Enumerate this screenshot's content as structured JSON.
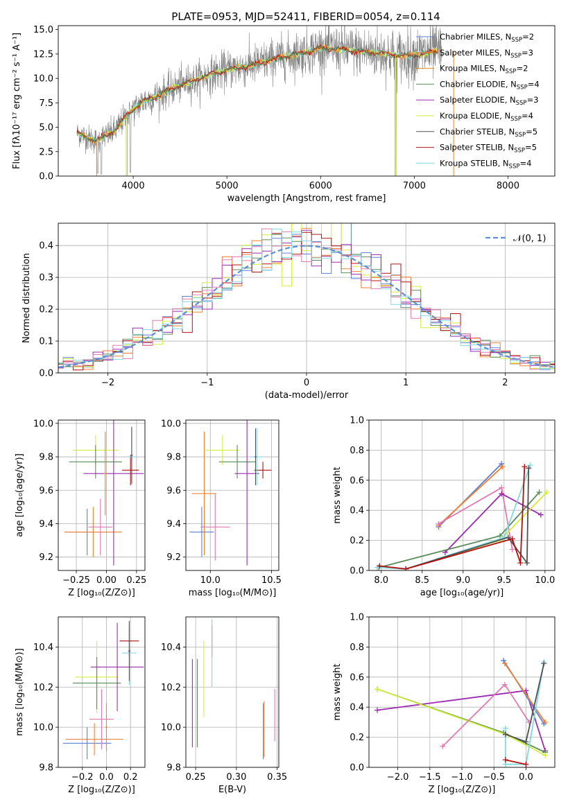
{
  "figure": {
    "title": "PLATE=0953, MJD=52411, FIBERID=0054, z=0.114"
  },
  "colors": {
    "Chabrier MILES": "#5b7fd6",
    "Salpeter MILES": "#f08030",
    "Kroupa MILES": "#e08a10",
    "Chabrier ELODIE": "#5a8a5a",
    "Salpeter ELODIE": "#9b2ab0",
    "Kroupa ELODIE": "#d4ee3a",
    "Chabrier STELIB": "#505050",
    "Salpeter STELIB": "#b01010",
    "Kroupa STELIB": "#80d8e0",
    "pink": "#e07ab0",
    "data_grey": "#808080",
    "gaussian": "#5b8fd6"
  },
  "chart_data": [
    {
      "id": "spectrum",
      "type": "line",
      "xlabel": "wavelength [Angstrom, rest frame]",
      "ylabel": "Flux [fλ10⁻¹⁷ erg cm⁻² s⁻¹ A⁻¹]",
      "xlim": [
        3200,
        8500
      ],
      "ylim": [
        0,
        15.4
      ],
      "xticks": [
        4000,
        5000,
        6000,
        7000,
        8000
      ],
      "yticks": [
        0.0,
        2.5,
        5.0,
        7.5,
        10.0,
        12.5,
        15.0
      ],
      "ytick_labels": [
        "0.0",
        "2.5",
        "5.0",
        "7.5",
        "10.0",
        "12.5",
        "15.0"
      ],
      "legend_position": "upper right",
      "legend": [
        {
          "text": "Chabrier MILES, N",
          "sub": "SSP",
          "tail": "=2",
          "color": "Chabrier MILES"
        },
        {
          "text": "Salpeter MILES, N",
          "sub": "SSP",
          "tail": "=3",
          "color": "Salpeter MILES"
        },
        {
          "text": "Kroupa MILES, N",
          "sub": "SSP",
          "tail": "=2",
          "color": "Kroupa MILES"
        },
        {
          "text": "Chabrier ELODIE, N",
          "sub": "SSP",
          "tail": "=4",
          "color": "Chabrier ELODIE"
        },
        {
          "text": "Salpeter ELODIE, N",
          "sub": "SSP",
          "tail": "=3",
          "color": "Salpeter ELODIE"
        },
        {
          "text": "Kroupa ELODIE, N",
          "sub": "SSP",
          "tail": "=4",
          "color": "Kroupa ELODIE"
        },
        {
          "text": "Chabrier STELIB, N",
          "sub": "SSP",
          "tail": "=5",
          "color": "Chabrier STELIB"
        },
        {
          "text": "Salpeter STELIB, N",
          "sub": "SSP",
          "tail": "=5",
          "color": "Salpeter STELIB"
        },
        {
          "text": "Kroupa STELIB, N",
          "sub": "SSP",
          "tail": "=4",
          "color": "Kroupa STELIB"
        }
      ],
      "continuum": [
        [
          3400,
          4.4
        ],
        [
          3600,
          3.6
        ],
        [
          3800,
          4.6
        ],
        [
          3950,
          6.4
        ],
        [
          4100,
          7.6
        ],
        [
          4300,
          8.4
        ],
        [
          4500,
          9.3
        ],
        [
          4800,
          10.3
        ],
        [
          5000,
          10.9
        ],
        [
          5300,
          11.4
        ],
        [
          5500,
          12.0
        ],
        [
          5800,
          12.6
        ],
        [
          6000,
          13.1
        ],
        [
          6300,
          12.9
        ],
        [
          6600,
          12.6
        ],
        [
          6900,
          12.3
        ],
        [
          7100,
          12.5
        ],
        [
          7200,
          12.7
        ]
      ],
      "data_range": [
        3400,
        7300
      ],
      "data_noise": 1.2,
      "dips": [
        [
          3620,
          0.3
        ],
        [
          3660,
          0.2
        ],
        [
          3930,
          0.1
        ],
        [
          3970,
          0.4
        ],
        [
          6800,
          0.0
        ],
        [
          7420,
          0.0
        ]
      ]
    },
    {
      "id": "residuals",
      "type": "histogram",
      "xlabel": "(data-model)/error",
      "ylabel": "Normed distribution",
      "xlim": [
        -2.5,
        2.5
      ],
      "ylim": [
        0,
        0.47
      ],
      "xticks": [
        -2,
        -1,
        0,
        1,
        2
      ],
      "xtick_labels": [
        "−2",
        "−1",
        "0",
        "1",
        "2"
      ],
      "yticks": [
        0.0,
        0.1,
        0.2,
        0.3,
        0.4
      ],
      "ytick_labels": [
        "0.0",
        "0.1",
        "0.2",
        "0.3",
        "0.4"
      ],
      "legend": "𝒩(0, 1)",
      "bin_width": 0.1,
      "series_colors": [
        "Chabrier MILES",
        "Salpeter MILES",
        "Kroupa ELODIE",
        "Chabrier ELODIE",
        "Salpeter ELODIE",
        "Salpeter STELIB",
        "pink",
        "Kroupa STELIB"
      ]
    },
    {
      "id": "age-vs-Z",
      "type": "errorbar",
      "xlabel": "Z [log₁₀(Z/Z⊙)]",
      "ylabel": "age  [log₁₀(age/yr)]",
      "xlim": [
        -0.4,
        0.32
      ],
      "ylim": [
        9.12,
        10.02
      ],
      "xticks": [
        -0.25,
        0.0,
        0.25
      ],
      "xtick_labels": [
        "−0.25",
        "0.00",
        "0.25"
      ],
      "yticks": [
        9.2,
        9.4,
        9.6,
        9.8,
        10.0
      ],
      "ytick_labels": [
        "9.2",
        "9.4",
        "9.6",
        "9.8",
        "10.0"
      ],
      "points": [
        {
          "c": "Chabrier MILES",
          "x": -0.16,
          "xe": 0.18,
          "y": 9.35,
          "ye": 0.14
        },
        {
          "c": "Salpeter MILES",
          "x": -0.11,
          "xe": 0.24,
          "y": 9.35,
          "ye": 0.15
        },
        {
          "c": "Kroupa ELODIE",
          "x": -0.09,
          "xe": 0.19,
          "y": 9.84,
          "ye": 0.09
        },
        {
          "c": "Chabrier ELODIE",
          "x": -0.09,
          "xe": 0.22,
          "y": 9.77,
          "ye": 0.1
        },
        {
          "c": "Salpeter ELODIE",
          "x": 0.06,
          "xe": 0.25,
          "y": 9.7,
          "ye": 0.55
        },
        {
          "c": "Salpeter STELIB",
          "x": 0.2,
          "xe": 0.07,
          "y": 9.72,
          "ye": 0.09
        },
        {
          "c": "pink",
          "x": -0.05,
          "xe": 0.1,
          "y": 9.38,
          "ye": 0.17
        },
        {
          "c": "Kroupa STELIB",
          "x": 0.21,
          "xe": 0.04,
          "y": 9.8,
          "ye": 0.17
        },
        {
          "c": "Chabrier STELIB",
          "x": 0.21,
          "xe": 0.01,
          "y": 9.81,
          "ye": 0.17
        },
        {
          "c": "Salpeter MILES",
          "x": -0.01,
          "xe": 0.01,
          "y": 9.7,
          "ye": 0.25
        }
      ]
    },
    {
      "id": "age-vs-mass",
      "type": "errorbar",
      "xlabel": "mass [log₁₀(M/M⊙)]",
      "ylabel": "",
      "xlim": [
        9.8,
        10.56
      ],
      "ylim": [
        9.12,
        10.02
      ],
      "xticks": [
        10.0,
        10.5
      ],
      "xtick_labels": [
        "10.0",
        "10.5"
      ],
      "yticks": [
        9.2,
        9.4,
        9.6,
        9.8,
        10.0
      ],
      "ytick_labels": [
        "9.2",
        "9.4",
        "9.6",
        "9.8",
        "10.0"
      ],
      "points": [
        {
          "c": "Chabrier MILES",
          "x": 9.93,
          "xe": 0.1,
          "y": 9.35,
          "ye": 0.15
        },
        {
          "c": "Salpeter MILES",
          "x": 9.95,
          "xe": 0.1,
          "y": 9.58,
          "ye": 0.37
        },
        {
          "c": "Kroupa ELODIE",
          "x": 10.1,
          "xe": 0.14,
          "y": 9.84,
          "ye": 0.09
        },
        {
          "c": "Chabrier ELODIE",
          "x": 10.22,
          "xe": 0.15,
          "y": 9.77,
          "ye": 0.1
        },
        {
          "c": "Salpeter ELODIE",
          "x": 10.3,
          "xe": 0.1,
          "y": 9.7,
          "ye": 0.55
        },
        {
          "c": "Salpeter STELIB",
          "x": 10.43,
          "xe": 0.07,
          "y": 9.72,
          "ye": 0.05
        },
        {
          "c": "pink",
          "x": 10.04,
          "xe": 0.12,
          "y": 9.38,
          "ye": 0.2
        },
        {
          "c": "Kroupa STELIB",
          "x": 10.38,
          "xe": 0.05,
          "y": 9.8,
          "ye": 0.17
        },
        {
          "c": "Chabrier STELIB",
          "x": 10.37,
          "xe": 0.01,
          "y": 9.8,
          "ye": 0.17
        }
      ]
    },
    {
      "id": "weight-vs-age",
      "type": "line",
      "xlabel": "age  [log₁₀(age/yr)]",
      "ylabel": "mass weight",
      "xlim": [
        7.85,
        10.12
      ],
      "ylim": [
        0,
        1
      ],
      "xticks": [
        8.0,
        8.5,
        9.0,
        9.5,
        10.0
      ],
      "xtick_labels": [
        "8.0",
        "8.5",
        "9.0",
        "9.5",
        "10.0"
      ],
      "yticks": [
        0.0,
        0.2,
        0.4,
        0.6,
        0.8,
        1.0
      ],
      "ytick_labels": [
        "0.0",
        "0.2",
        "0.4",
        "0.6",
        "0.8",
        "1.0"
      ],
      "series": [
        {
          "c": "Chabrier MILES",
          "pts": [
            [
              8.7,
              0.29
            ],
            [
              9.47,
              0.71
            ]
          ]
        },
        {
          "c": "Salpeter MILES",
          "pts": [
            [
              8.7,
              0.3
            ],
            [
              9.48,
              0.69
            ]
          ]
        },
        {
          "c": "pink",
          "pts": [
            [
              8.7,
              0.31
            ],
            [
              9.47,
              0.55
            ],
            [
              9.6,
              0.14
            ]
          ]
        },
        {
          "c": "Salpeter ELODIE",
          "pts": [
            [
              8.78,
              0.12
            ],
            [
              9.47,
              0.51
            ],
            [
              9.95,
              0.37
            ]
          ]
        },
        {
          "c": "Chabrier ELODIE",
          "pts": [
            [
              7.97,
              0.02
            ],
            [
              9.45,
              0.23
            ],
            [
              9.93,
              0.52
            ]
          ]
        },
        {
          "c": "Kroupa ELODIE",
          "pts": [
            [
              8.3,
              0.01
            ],
            [
              9.45,
              0.2
            ],
            [
              10.02,
              0.52
            ]
          ]
        },
        {
          "c": "Kroupa STELIB",
          "pts": [
            [
              7.95,
              0.02
            ],
            [
              8.3,
              0.01
            ],
            [
              9.5,
              0.22
            ],
            [
              9.82,
              0.7
            ]
          ]
        },
        {
          "c": "Chabrier STELIB",
          "pts": [
            [
              8.3,
              0.01
            ],
            [
              9.55,
              0.22
            ],
            [
              9.78,
              0.05
            ],
            [
              9.8,
              0.68
            ]
          ]
        },
        {
          "c": "Salpeter STELIB",
          "pts": [
            [
              7.98,
              0.03
            ],
            [
              8.3,
              0.01
            ],
            [
              9.6,
              0.21
            ],
            [
              9.7,
              0.05
            ],
            [
              9.75,
              0.69
            ]
          ]
        }
      ]
    },
    {
      "id": "mass-vs-Z",
      "type": "errorbar",
      "xlabel": "Z [log₁₀(Z/Z⊙)]",
      "ylabel": "mass [log₁₀(M/M⊙)]",
      "xlim": [
        -0.4,
        0.32
      ],
      "ylim": [
        9.8,
        10.55
      ],
      "xticks": [
        -0.2,
        0.0,
        0.2
      ],
      "xtick_labels": [
        "−0.2",
        "0.0",
        "0.2"
      ],
      "yticks": [
        9.8,
        10.0,
        10.2,
        10.4
      ],
      "ytick_labels": [
        "9.8",
        "10.0",
        "10.2",
        "10.4"
      ],
      "points": [
        {
          "c": "Chabrier MILES",
          "x": -0.16,
          "xe": 0.2,
          "y": 9.92,
          "ye": 0.08
        },
        {
          "c": "Salpeter MILES",
          "x": -0.1,
          "xe": 0.24,
          "y": 9.94,
          "ye": 0.08
        },
        {
          "c": "Kroupa ELODIE",
          "x": -0.08,
          "xe": 0.18,
          "y": 10.25,
          "ye": 0.18
        },
        {
          "c": "Chabrier ELODIE",
          "x": -0.08,
          "xe": 0.2,
          "y": 10.22,
          "ye": 0.13
        },
        {
          "c": "Salpeter ELODIE",
          "x": 0.09,
          "xe": 0.22,
          "y": 10.3,
          "ye": 0.22
        },
        {
          "c": "Salpeter STELIB",
          "x": 0.19,
          "xe": 0.08,
          "y": 10.43,
          "ye": 0.08
        },
        {
          "c": "pink",
          "x": -0.04,
          "xe": 0.1,
          "y": 10.04,
          "ye": 0.15
        },
        {
          "c": "Kroupa STELIB",
          "x": 0.19,
          "xe": 0.06,
          "y": 10.37,
          "ye": 0.16
        },
        {
          "c": "Chabrier STELIB",
          "x": 0.19,
          "xe": 0.01,
          "y": 10.38,
          "ye": 0.15
        },
        {
          "c": "Salpeter MILES",
          "x": 0.0,
          "xe": 0.01,
          "y": 10.0,
          "ye": 0.12
        }
      ]
    },
    {
      "id": "mass-vs-ebv",
      "type": "errorbar",
      "xlabel": "E(B-V)",
      "ylabel": "",
      "xlim": [
        0.238,
        0.352
      ],
      "ylim": [
        9.8,
        10.55
      ],
      "xticks": [
        0.25,
        0.3,
        0.35
      ],
      "xtick_labels": [
        "0.25",
        "0.30",
        "0.35"
      ],
      "yticks": [
        9.8,
        10.0,
        10.2,
        10.4
      ],
      "ytick_labels": [
        "9.8",
        "10.0",
        "10.2",
        "10.4"
      ],
      "points": [
        {
          "c": "Salpeter ELODIE",
          "x": 0.246,
          "xe": 0,
          "y": 10.12,
          "ye": 0.22
        },
        {
          "c": "Chabrier ELODIE",
          "x": 0.252,
          "xe": 0,
          "y": 10.12,
          "ye": 0.22
        },
        {
          "c": "Kroupa ELODIE",
          "x": 0.26,
          "xe": 0,
          "y": 10.24,
          "ye": 0.19
        },
        {
          "c": "Salpeter STELIB",
          "x": 0.27,
          "xe": 0,
          "y": 10.43,
          "ye": 0.08
        },
        {
          "c": "Kroupa STELIB",
          "x": 0.27,
          "xe": 0,
          "y": 10.37,
          "ye": 0.17
        },
        {
          "c": "Chabrier MILES",
          "x": 0.333,
          "xe": 0,
          "y": 9.98,
          "ye": 0.14
        },
        {
          "c": "Salpeter MILES",
          "x": 0.334,
          "xe": 0,
          "y": 9.99,
          "ye": 0.14
        },
        {
          "c": "pink",
          "x": 0.347,
          "xe": 0,
          "y": 10.06,
          "ye": 0.13
        }
      ]
    },
    {
      "id": "weight-vs-Z",
      "type": "line",
      "xlabel": "Z [log₁₀(Z/Z⊙)]",
      "ylabel": "mass weight",
      "xlim": [
        -2.45,
        0.45
      ],
      "ylim": [
        0,
        1
      ],
      "xticks": [
        -2.0,
        -1.5,
        -1.0,
        -0.5,
        0.0
      ],
      "xtick_labels": [
        "−2.0",
        "−1.5",
        "−1.0",
        "−0.5",
        "0.0"
      ],
      "yticks": [
        0.0,
        0.2,
        0.4,
        0.6,
        0.8,
        1.0
      ],
      "ytick_labels": [
        "0.0",
        "0.2",
        "0.4",
        "0.6",
        "0.8",
        "1.0"
      ],
      "series": [
        {
          "c": "Salpeter ELODIE",
          "pts": [
            [
              -2.32,
              0.38
            ],
            [
              0.0,
              0.51
            ],
            [
              0.3,
              0.11
            ]
          ]
        },
        {
          "c": "Chabrier ELODIE",
          "pts": [
            [
              -2.32,
              0.52
            ],
            [
              -0.35,
              0.23
            ],
            [
              0.3,
              0.1
            ]
          ]
        },
        {
          "c": "Kroupa ELODIE",
          "pts": [
            [
              -2.32,
              0.52
            ],
            [
              -0.32,
              0.22
            ],
            [
              0.3,
              0.08
            ]
          ]
        },
        {
          "c": "pink",
          "pts": [
            [
              -1.3,
              0.14
            ],
            [
              -0.33,
              0.55
            ],
            [
              0.05,
              0.3
            ]
          ]
        },
        {
          "c": "Chabrier MILES",
          "pts": [
            [
              -0.35,
              0.71
            ],
            [
              0.28,
              0.29
            ]
          ]
        },
        {
          "c": "Salpeter MILES",
          "pts": [
            [
              -0.33,
              0.69
            ],
            [
              0.3,
              0.3
            ]
          ]
        },
        {
          "c": "Kroupa STELIB",
          "pts": [
            [
              -0.32,
              0.26
            ],
            [
              -0.32,
              0.02
            ],
            [
              0.0,
              0.02
            ],
            [
              0.28,
              0.7
            ]
          ]
        },
        {
          "c": "Chabrier STELIB",
          "pts": [
            [
              -0.32,
              0.22
            ],
            [
              0.0,
              0.17
            ],
            [
              0.28,
              0.69
            ]
          ]
        },
        {
          "c": "Salpeter STELIB",
          "pts": [
            [
              -0.32,
              0.05
            ],
            [
              0.0,
              0.02
            ]
          ]
        }
      ]
    }
  ]
}
